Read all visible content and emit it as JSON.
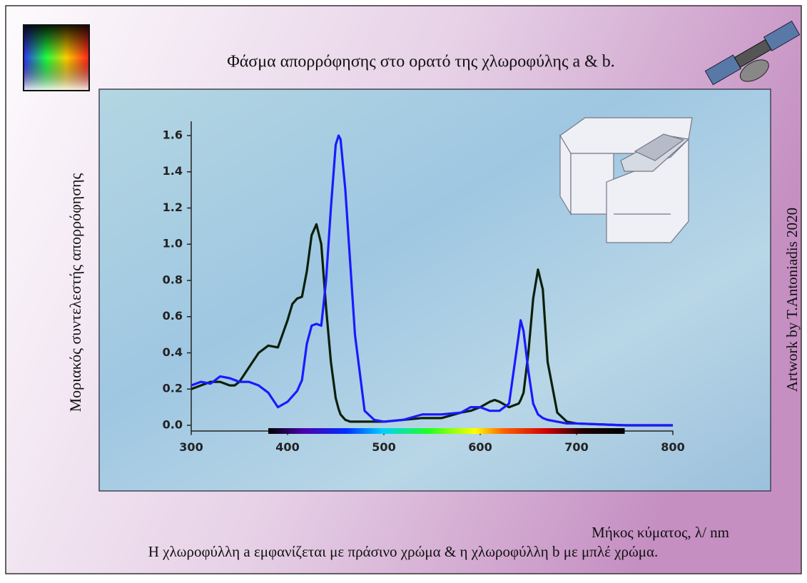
{
  "chart_data": {
    "type": "line",
    "title": "Φάσμα απορρόφησης στο ορατό της χλωροφύλης a & b.",
    "y_label": "Μοριακός συντελεστής απορρόφησης",
    "x_label": "Μήκος κύματος, λ/ nm",
    "caption": "Η χλωροφύλλη a εμφανίζεται με πράσινο χρώμα & η χλωροφύλλη b με μπλέ χρώμα.",
    "credit": "Artwork by T.Antoniadis 2020",
    "x": [
      300,
      310,
      320,
      330,
      340,
      345,
      350,
      360,
      370,
      380,
      390,
      400,
      405,
      410,
      415,
      420,
      425,
      430,
      435,
      440,
      445,
      450,
      453,
      455,
      460,
      465,
      470,
      480,
      490,
      500,
      520,
      540,
      560,
      580,
      590,
      600,
      610,
      615,
      620,
      630,
      640,
      642,
      645,
      650,
      655,
      660,
      665,
      670,
      680,
      690,
      700,
      750,
      800
    ],
    "series": [
      {
        "color": "#0b1f0b",
        "values": [
          0.2,
          0.22,
          0.24,
          0.24,
          0.22,
          0.22,
          0.24,
          0.32,
          0.4,
          0.44,
          0.43,
          0.58,
          0.67,
          0.7,
          0.71,
          0.85,
          1.05,
          1.11,
          1.0,
          0.65,
          0.35,
          0.15,
          0.09,
          0.06,
          0.03,
          0.02,
          0.02,
          0.02,
          0.02,
          0.02,
          0.03,
          0.04,
          0.04,
          0.07,
          0.08,
          0.1,
          0.13,
          0.14,
          0.13,
          0.1,
          0.12,
          0.14,
          0.18,
          0.4,
          0.7,
          0.86,
          0.75,
          0.35,
          0.07,
          0.02,
          0.01,
          0,
          0
        ]
      },
      {
        "color": "#1a1aff",
        "values": [
          0.22,
          0.24,
          0.23,
          0.27,
          0.26,
          0.25,
          0.24,
          0.24,
          0.22,
          0.18,
          0.1,
          0.13,
          0.16,
          0.19,
          0.25,
          0.45,
          0.55,
          0.56,
          0.55,
          0.8,
          1.2,
          1.55,
          1.6,
          1.58,
          1.3,
          0.9,
          0.5,
          0.08,
          0.03,
          0.02,
          0.03,
          0.06,
          0.06,
          0.07,
          0.1,
          0.1,
          0.08,
          0.08,
          0.08,
          0.12,
          0.5,
          0.58,
          0.52,
          0.3,
          0.12,
          0.06,
          0.04,
          0.03,
          0.02,
          0.01,
          0.01,
          0,
          0
        ]
      }
    ],
    "spectrum_range": [
      380,
      750
    ],
    "xlim": [
      300,
      800
    ],
    "xticks": [
      300,
      400,
      500,
      600,
      700,
      800
    ],
    "ylim": [
      -0.03,
      1.68
    ],
    "yticks": [
      {
        "value": 0,
        "label": "0.0"
      },
      0.2,
      0.4,
      0.6,
      0.8,
      {
        "value": 1,
        "label": "1.0"
      },
      1.2,
      1.4,
      1.6
    ]
  }
}
